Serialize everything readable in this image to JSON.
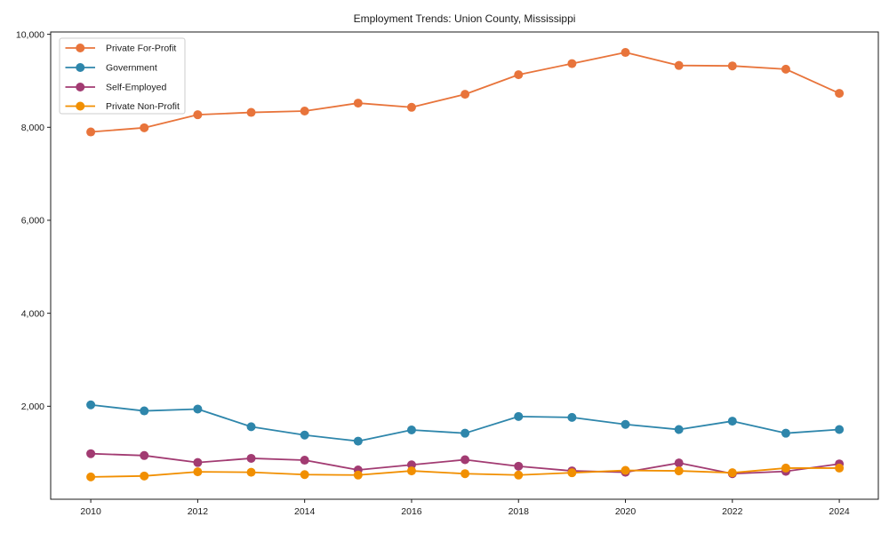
{
  "page": {
    "title": "Employment Trends: Union County, Mississippi"
  },
  "chart_data": {
    "type": "line",
    "title": "Employment Trends: Union County, Mississippi",
    "xlabel": "",
    "ylabel": "",
    "grid": false,
    "legend_position": "upper-left",
    "marker": "circle",
    "x": [
      2010,
      2011,
      2012,
      2013,
      2014,
      2015,
      2016,
      2017,
      2018,
      2019,
      2020,
      2021,
      2022,
      2023,
      2024
    ],
    "series": [
      {
        "name": "Private For-Profit",
        "color": "#E8743B",
        "values": [
          7900,
          7990,
          8270,
          8320,
          8350,
          8520,
          8430,
          8710,
          9130,
          9370,
          9610,
          9330,
          9320,
          9250,
          8730
        ]
      },
      {
        "name": "Government",
        "color": "#2E86AB",
        "values": [
          2030,
          1900,
          1940,
          1560,
          1380,
          1250,
          1490,
          1420,
          1780,
          1760,
          1610,
          1500,
          1680,
          1420,
          1500
        ]
      },
      {
        "name": "Self-Employed",
        "color": "#A23B72",
        "values": [
          980,
          940,
          790,
          880,
          840,
          630,
          740,
          850,
          710,
          610,
          580,
          780,
          550,
          600,
          760
        ]
      },
      {
        "name": "Private Non-Profit",
        "color": "#F18F01",
        "values": [
          480,
          500,
          590,
          580,
          530,
          520,
          610,
          550,
          520,
          570,
          620,
          610,
          570,
          670,
          670
        ]
      }
    ],
    "xticks": [
      2010,
      2012,
      2014,
      2016,
      2018,
      2020,
      2022,
      2024
    ],
    "yticks": [
      2000,
      4000,
      6000,
      8000,
      10000
    ],
    "ytick_labels": [
      "2,000",
      "4,000",
      "6,000",
      "8,000",
      "10,000"
    ],
    "xlim": [
      2009.25,
      2024.73
    ],
    "ylim": [
      0,
      10050
    ]
  }
}
